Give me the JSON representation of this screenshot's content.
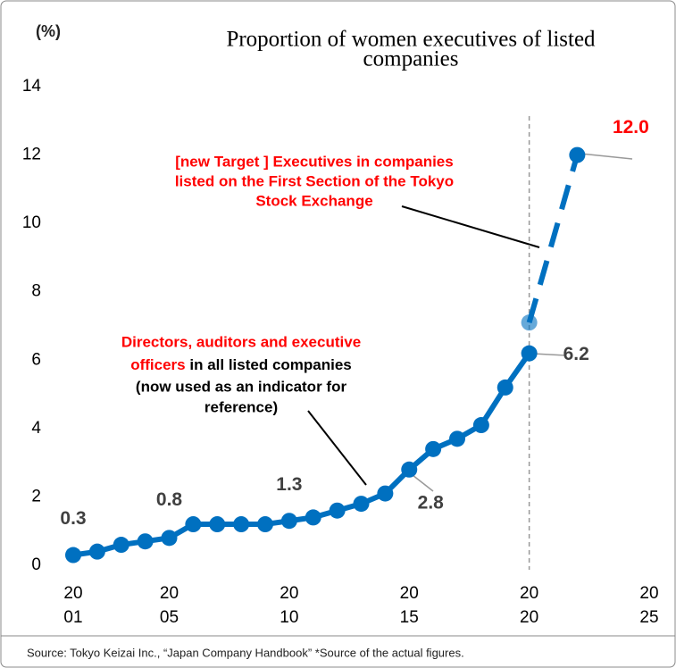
{
  "chart_data": {
    "type": "line",
    "title": [
      "Proportion of women executives of listed",
      "companies"
    ],
    "y_label": "(%)",
    "source": "Source: Tokyo Keizai Inc., “Japan Company Handbook” *Source of the actual figures.",
    "xlim": [
      2001,
      2025
    ],
    "xticks": [
      {
        "value": 2001,
        "label": [
          "20",
          "01"
        ]
      },
      {
        "value": 2005,
        "label": [
          "20",
          "05"
        ]
      },
      {
        "value": 2010,
        "label": [
          "20",
          "10"
        ]
      },
      {
        "value": 2015,
        "label": [
          "20",
          "15"
        ]
      },
      {
        "value": 2020,
        "label": [
          "20",
          "20"
        ]
      },
      {
        "value": 2025,
        "label": [
          "20",
          "25"
        ]
      }
    ],
    "ylim": [
      0,
      14
    ],
    "yticks": [
      0,
      2,
      4,
      6,
      8,
      10,
      12,
      14
    ],
    "vline": 2020,
    "series": [
      {
        "color": "#0070c0",
        "dashed": false,
        "x": [
          2001,
          2002,
          2003,
          2004,
          2005,
          2006,
          2007,
          2008,
          2009,
          2010,
          2011,
          2012,
          2013,
          2014,
          2015,
          2016,
          2017,
          2018,
          2019,
          2020
        ],
        "values": [
          0.3,
          0.4,
          0.6,
          0.7,
          0.8,
          1.2,
          1.2,
          1.2,
          1.2,
          1.3,
          1.4,
          1.6,
          1.8,
          2.1,
          2.8,
          3.4,
          3.7,
          4.1,
          5.2,
          6.2
        ],
        "value_labels": [
          "0.3",
          null,
          null,
          null,
          "0.8",
          null,
          null,
          null,
          null,
          "1.3",
          null,
          null,
          null,
          null,
          "2.8",
          null,
          null,
          null,
          null,
          "6.2"
        ]
      },
      {
        "color": "#0070c0",
        "dashed": true,
        "x": [
          2020,
          2022
        ],
        "values": [
          7.1,
          12
        ],
        "value_labels": [
          null,
          "12.0"
        ]
      }
    ],
    "annotations": [
      {
        "lines": [
          "[new Target ] Executives in companies",
          "listed on the First Section of the Tokyo",
          "Stock Exchange"
        ]
      },
      {
        "red": [
          "Directors, auditors and executive",
          "officers"
        ],
        "black": [
          " in all listed companies",
          "(now used as an indicator for",
          "reference)"
        ]
      }
    ]
  }
}
